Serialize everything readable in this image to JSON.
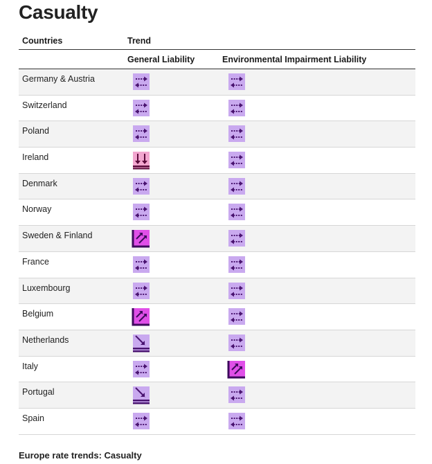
{
  "title": "Casualty",
  "table": {
    "headers": {
      "countries": "Countries",
      "trend": "Trend",
      "general_liability": "General Liability",
      "environmental_impairment_liability": "Environmental Impairment Liability"
    },
    "rows": [
      {
        "country": "Germany & Austria",
        "general_liability": "stable",
        "environmental_impairment_liability": "stable"
      },
      {
        "country": "Switzerland",
        "general_liability": "stable",
        "environmental_impairment_liability": "stable"
      },
      {
        "country": "Poland",
        "general_liability": "stable",
        "environmental_impairment_liability": "stable"
      },
      {
        "country": "Ireland",
        "general_liability": "decrease",
        "environmental_impairment_liability": "stable"
      },
      {
        "country": "Denmark",
        "general_liability": "stable",
        "environmental_impairment_liability": "stable"
      },
      {
        "country": "Norway",
        "general_liability": "stable",
        "environmental_impairment_liability": "stable"
      },
      {
        "country": "Sweden & Finland",
        "general_liability": "increase",
        "environmental_impairment_liability": "stable"
      },
      {
        "country": "France",
        "general_liability": "stable",
        "environmental_impairment_liability": "stable"
      },
      {
        "country": "Luxembourg",
        "general_liability": "stable",
        "environmental_impairment_liability": "stable"
      },
      {
        "country": "Belgium",
        "general_liability": "increase",
        "environmental_impairment_liability": "stable"
      },
      {
        "country": "Netherlands",
        "general_liability": "slight-decrease",
        "environmental_impairment_liability": "stable"
      },
      {
        "country": "Italy",
        "general_liability": "stable",
        "environmental_impairment_liability": "increase"
      },
      {
        "country": "Portugal",
        "general_liability": "slight-decrease",
        "environmental_impairment_liability": "stable"
      },
      {
        "country": "Spain",
        "general_liability": "stable",
        "environmental_impairment_liability": "stable"
      }
    ]
  },
  "icons": {
    "stable": {
      "name": "stable-trend-icon",
      "bg": "#c9a9ef",
      "fg": "#4a1470"
    },
    "increase": {
      "name": "increase-trend-icon",
      "bg": "#e04fe8",
      "fg": "#3d0a5c"
    },
    "decrease": {
      "name": "decrease-trend-icon",
      "bg": "#f2a6cf",
      "fg": "#5a0a3a"
    },
    "slight-decrease": {
      "name": "slight-decrease-trend-icon",
      "bg": "#c9a9ef",
      "fg": "#4a1470"
    }
  },
  "footer": "Europe rate trends: Casualty"
}
